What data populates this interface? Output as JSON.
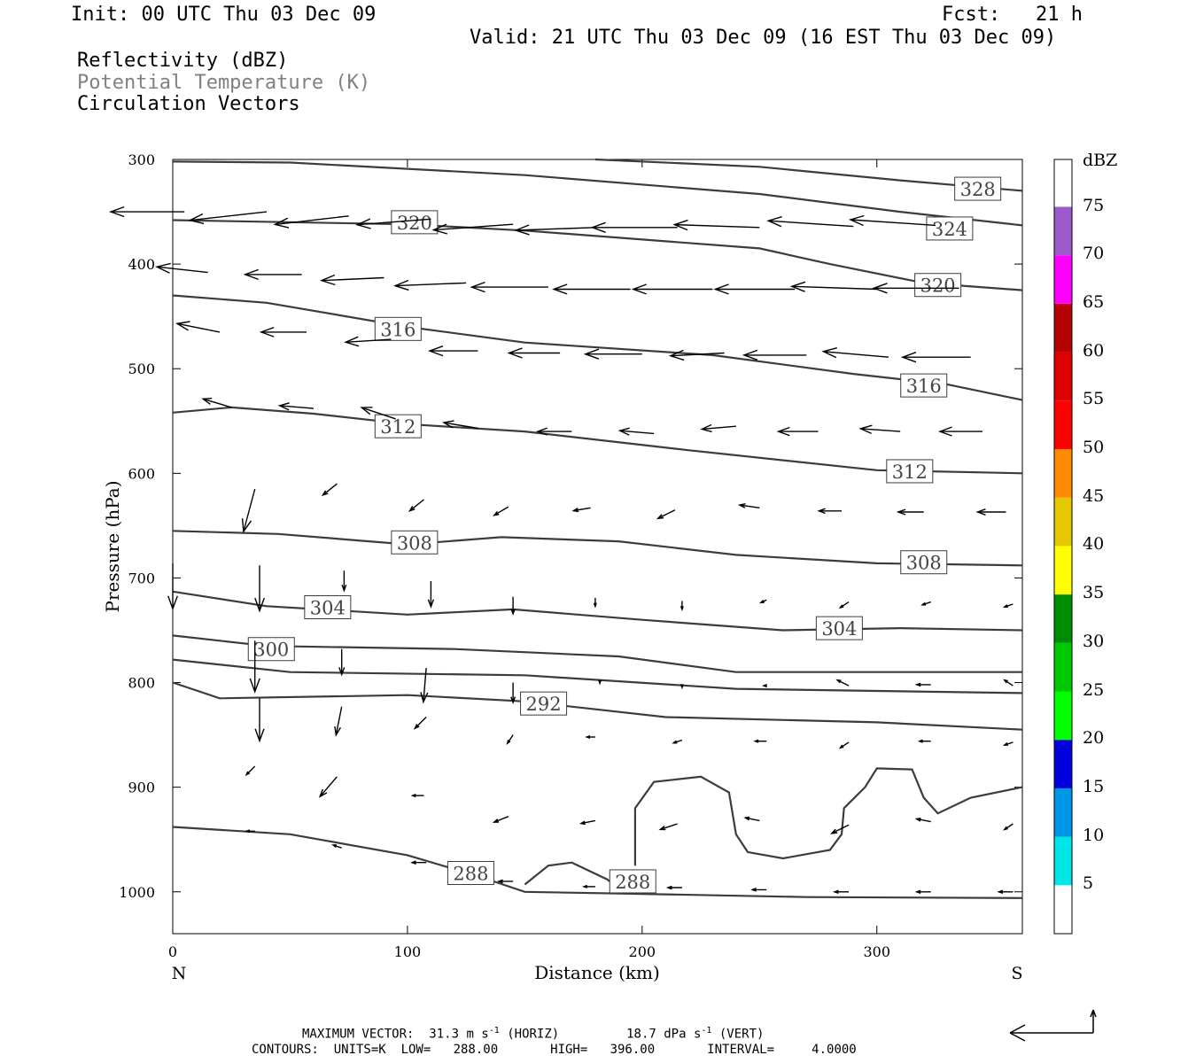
{
  "header": {
    "init": "Init: 00 UTC Thu 03 Dec 09",
    "fcst": "Fcst:   21 h",
    "valid": "Valid: 21 UTC Thu 03 Dec 09 (16 EST Thu 03 Dec 09)",
    "fields": [
      {
        "label": "Reflectivity (dBZ)",
        "color": "#000000"
      },
      {
        "label": "Potential Temperature (K)",
        "color": "#808080"
      },
      {
        "label": "Circulation Vectors",
        "color": "#000000"
      }
    ]
  },
  "chart_data": {
    "type": "cross-section",
    "xlabel": "Distance (km)",
    "ylabel": "Pressure (hPa)",
    "xlim": [
      0,
      362
    ],
    "ylim": [
      1040,
      300
    ],
    "x_ticks": [
      0,
      100,
      200,
      300
    ],
    "y_ticks": [
      300,
      400,
      500,
      600,
      700,
      800,
      900,
      1000
    ],
    "endpoints": {
      "left": "N",
      "right": "S"
    },
    "grid": false,
    "contour_color": "#3c3c3c",
    "theta_contours": [
      {
        "level": 328,
        "points": [
          [
            180,
            300
          ],
          [
            250,
            307
          ],
          [
            310,
            320
          ],
          [
            362,
            330
          ]
        ],
        "labels": [
          {
            "text": "328",
            "x": 343,
            "p": 328
          }
        ]
      },
      {
        "level": 324,
        "points": [
          [
            0,
            302
          ],
          [
            50,
            303
          ],
          [
            150,
            315
          ],
          [
            250,
            333
          ],
          [
            310,
            350
          ],
          [
            362,
            363
          ]
        ],
        "labels": [
          {
            "text": "324",
            "x": 331,
            "p": 366
          }
        ]
      },
      {
        "level": 320,
        "points": [
          [
            0,
            358
          ],
          [
            100,
            362
          ],
          [
            150,
            368
          ],
          [
            250,
            385
          ],
          [
            280,
            400
          ],
          [
            320,
            418
          ],
          [
            362,
            425
          ]
        ],
        "labels": [
          {
            "text": "320",
            "x": 103,
            "p": 360
          },
          {
            "text": "320",
            "x": 326,
            "p": 420
          }
        ]
      },
      {
        "level": 316,
        "points": [
          [
            0,
            430
          ],
          [
            40,
            437
          ],
          [
            100,
            460
          ],
          [
            150,
            475
          ],
          [
            230,
            487
          ],
          [
            290,
            505
          ],
          [
            330,
            515
          ],
          [
            362,
            530
          ]
        ],
        "labels": [
          {
            "text": "316",
            "x": 96,
            "p": 462
          },
          {
            "text": "316",
            "x": 320,
            "p": 516
          }
        ]
      },
      {
        "level": 312,
        "points": [
          [
            0,
            542
          ],
          [
            25,
            537
          ],
          [
            60,
            543
          ],
          [
            100,
            553
          ],
          [
            150,
            560
          ],
          [
            220,
            578
          ],
          [
            300,
            597
          ],
          [
            362,
            600
          ]
        ],
        "labels": [
          {
            "text": "312",
            "x": 96,
            "p": 555
          },
          {
            "text": "312",
            "x": 314,
            "p": 598
          }
        ]
      },
      {
        "level": 308,
        "points": [
          [
            0,
            655
          ],
          [
            45,
            658
          ],
          [
            100,
            668
          ],
          [
            140,
            661
          ],
          [
            190,
            665
          ],
          [
            240,
            678
          ],
          [
            300,
            686
          ],
          [
            362,
            688
          ]
        ],
        "labels": [
          {
            "text": "308",
            "x": 103,
            "p": 666
          },
          {
            "text": "308",
            "x": 320,
            "p": 685
          }
        ]
      },
      {
        "level": 304,
        "points": [
          [
            0,
            713
          ],
          [
            40,
            727
          ],
          [
            100,
            735
          ],
          [
            145,
            730
          ],
          [
            200,
            740
          ],
          [
            260,
            750
          ],
          [
            310,
            748
          ],
          [
            362,
            750
          ]
        ],
        "labels": [
          {
            "text": "304",
            "x": 66,
            "p": 728
          },
          {
            "text": "304",
            "x": 284,
            "p": 748
          }
        ]
      },
      {
        "level": 300,
        "points": [
          [
            0,
            755
          ],
          [
            40,
            765
          ],
          [
            120,
            768
          ],
          [
            190,
            775
          ],
          [
            240,
            790
          ],
          [
            362,
            790
          ]
        ],
        "labels": [
          {
            "text": "300",
            "x": 42,
            "p": 768
          }
        ]
      },
      {
        "level": 296,
        "points": [
          [
            0,
            778
          ],
          [
            50,
            790
          ],
          [
            150,
            793
          ],
          [
            240,
            806
          ],
          [
            362,
            810
          ]
        ],
        "labels": []
      },
      {
        "level": 292,
        "points": [
          [
            0,
            800
          ],
          [
            20,
            815
          ],
          [
            100,
            812
          ],
          [
            150,
            818
          ],
          [
            210,
            833
          ],
          [
            300,
            838
          ],
          [
            362,
            845
          ]
        ],
        "labels": [
          {
            "text": "292",
            "x": 158,
            "p": 820
          }
        ]
      },
      {
        "level": 288,
        "points": [
          [
            0,
            938
          ],
          [
            50,
            945
          ],
          [
            100,
            965
          ],
          [
            130,
            985
          ],
          [
            150,
            1000
          ],
          [
            200,
            1002
          ],
          [
            270,
            1005
          ],
          [
            362,
            1006
          ]
        ],
        "labels": [
          {
            "text": "288",
            "x": 127,
            "p": 982
          }
        ]
      },
      {
        "level": 288,
        "points": [
          [
            150,
            993
          ],
          [
            160,
            975
          ],
          [
            170,
            972
          ],
          [
            185,
            988
          ],
          [
            188,
            993
          ]
        ],
        "labels": [
          {
            "text": "288",
            "x": 196,
            "p": 990
          }
        ]
      },
      {
        "level": 288,
        "points": [
          [
            197,
            975
          ],
          [
            197,
            920
          ],
          [
            205,
            895
          ],
          [
            225,
            890
          ],
          [
            237,
            905
          ],
          [
            240,
            945
          ],
          [
            245,
            962
          ],
          [
            260,
            968
          ],
          [
            280,
            960
          ],
          [
            285,
            945
          ],
          [
            286,
            920
          ],
          [
            295,
            900
          ],
          [
            300,
            882
          ],
          [
            315,
            883
          ],
          [
            320,
            910
          ],
          [
            326,
            925
          ],
          [
            340,
            910
          ],
          [
            362,
            900
          ]
        ],
        "labels": []
      }
    ],
    "vectors": [
      {
        "x": 5,
        "p": 350,
        "u": -26,
        "v": 0
      },
      {
        "x": 40,
        "p": 350,
        "u": -27,
        "v": -3
      },
      {
        "x": 75,
        "p": 354,
        "u": -26,
        "v": -3
      },
      {
        "x": 110,
        "p": 357,
        "u": -26,
        "v": -2
      },
      {
        "x": 145,
        "p": 362,
        "u": -28,
        "v": -2
      },
      {
        "x": 180,
        "p": 365,
        "u": -28,
        "v": -1
      },
      {
        "x": 215,
        "p": 365,
        "u": -30,
        "v": 0
      },
      {
        "x": 250,
        "p": 365,
        "u": -30,
        "v": 1
      },
      {
        "x": 290,
        "p": 364,
        "u": -30,
        "v": 2
      },
      {
        "x": 325,
        "p": 363,
        "u": -30,
        "v": 2
      },
      {
        "x": 15,
        "p": 408,
        "u": -18,
        "v": 2
      },
      {
        "x": 55,
        "p": 410,
        "u": -20,
        "v": 0
      },
      {
        "x": 90,
        "p": 413,
        "u": -22,
        "v": -1
      },
      {
        "x": 125,
        "p": 418,
        "u": -25,
        "v": -1
      },
      {
        "x": 160,
        "p": 422,
        "u": -27,
        "v": 0
      },
      {
        "x": 195,
        "p": 424,
        "u": -27,
        "v": 0
      },
      {
        "x": 230,
        "p": 424,
        "u": -28,
        "v": 0
      },
      {
        "x": 265,
        "p": 424,
        "u": -28,
        "v": 0
      },
      {
        "x": 300,
        "p": 424,
        "u": -30,
        "v": 1
      },
      {
        "x": 335,
        "p": 423,
        "u": -30,
        "v": 0
      },
      {
        "x": 20,
        "p": 465,
        "u": -15,
        "v": 3
      },
      {
        "x": 57,
        "p": 465,
        "u": -16,
        "v": 0
      },
      {
        "x": 93,
        "p": 472,
        "u": -16,
        "v": -1
      },
      {
        "x": 130,
        "p": 483,
        "u": -17,
        "v": 0
      },
      {
        "x": 165,
        "p": 485,
        "u": -18,
        "v": 0
      },
      {
        "x": 200,
        "p": 486,
        "u": -20,
        "v": 0
      },
      {
        "x": 235,
        "p": 485,
        "u": -19,
        "v": -1
      },
      {
        "x": 270,
        "p": 487,
        "u": -22,
        "v": 0
      },
      {
        "x": 305,
        "p": 489,
        "u": -23,
        "v": 2
      },
      {
        "x": 340,
        "p": 489,
        "u": -24,
        "v": 0
      },
      {
        "x": 25,
        "p": 537,
        "u": -10,
        "v": 3
      },
      {
        "x": 60,
        "p": 538,
        "u": -12,
        "v": 1
      },
      {
        "x": 95,
        "p": 548,
        "u": -12,
        "v": 4
      },
      {
        "x": 130,
        "p": 557,
        "u": -12,
        "v": 2
      },
      {
        "x": 170,
        "p": 560,
        "u": -12,
        "v": 0
      },
      {
        "x": 205,
        "p": 562,
        "u": -12,
        "v": 1
      },
      {
        "x": 240,
        "p": 555,
        "u": -12,
        "v": -1
      },
      {
        "x": 275,
        "p": 560,
        "u": -14,
        "v": 0
      },
      {
        "x": 310,
        "p": 560,
        "u": -14,
        "v": 1
      },
      {
        "x": 345,
        "p": 560,
        "u": -15,
        "v": 0
      },
      {
        "x": 35,
        "p": 615,
        "u": -4,
        "v": -15
      },
      {
        "x": 70,
        "p": 610,
        "u": -5,
        "v": -4
      },
      {
        "x": 107,
        "p": 625,
        "u": -5,
        "v": -4
      },
      {
        "x": 143,
        "p": 632,
        "u": -5,
        "v": -3
      },
      {
        "x": 178,
        "p": 633,
        "u": -6,
        "v": -1
      },
      {
        "x": 214,
        "p": 635,
        "u": -6,
        "v": -3
      },
      {
        "x": 250,
        "p": 633,
        "u": -7,
        "v": 1
      },
      {
        "x": 285,
        "p": 636,
        "u": -8,
        "v": 0
      },
      {
        "x": 320,
        "p": 637,
        "u": -9,
        "v": 0
      },
      {
        "x": 355,
        "p": 637,
        "u": -10,
        "v": 0
      },
      {
        "x": 0,
        "p": 686,
        "u": 0,
        "v": -16
      },
      {
        "x": 37,
        "p": 688,
        "u": 0,
        "v": -16
      },
      {
        "x": 73,
        "p": 693,
        "u": 0,
        "v": -7
      },
      {
        "x": 110,
        "p": 703,
        "u": 0,
        "v": -9
      },
      {
        "x": 145,
        "p": 718,
        "u": 0,
        "v": -6
      },
      {
        "x": 180,
        "p": 719,
        "u": 0,
        "v": -3
      },
      {
        "x": 217,
        "p": 722,
        "u": 0,
        "v": -3
      },
      {
        "x": 253,
        "p": 721,
        "u": -2,
        "v": -1
      },
      {
        "x": 288,
        "p": 723,
        "u": -3,
        "v": -2
      },
      {
        "x": 323,
        "p": 723,
        "u": -3,
        "v": -1
      },
      {
        "x": 358,
        "p": 725,
        "u": -3,
        "v": -1
      },
      {
        "x": 35,
        "p": 760,
        "u": 0,
        "v": -18
      },
      {
        "x": 72,
        "p": 768,
        "u": 0,
        "v": -9
      },
      {
        "x": 108,
        "p": 786,
        "u": -1,
        "v": -12
      },
      {
        "x": 145,
        "p": 800,
        "u": 0,
        "v": -7
      },
      {
        "x": 182,
        "p": 798,
        "u": 0,
        "v": -1
      },
      {
        "x": 217,
        "p": 802,
        "u": 0,
        "v": -1
      },
      {
        "x": 253,
        "p": 803,
        "u": -1,
        "v": 0
      },
      {
        "x": 288,
        "p": 803,
        "u": -4,
        "v": 2
      },
      {
        "x": 323,
        "p": 802,
        "u": -5,
        "v": 0
      },
      {
        "x": 358,
        "p": 803,
        "u": -3,
        "v": 2
      },
      {
        "x": 37,
        "p": 815,
        "u": 0,
        "v": -15
      },
      {
        "x": 72,
        "p": 823,
        "u": -2,
        "v": -10
      },
      {
        "x": 108,
        "p": 833,
        "u": -4,
        "v": -4
      },
      {
        "x": 145,
        "p": 850,
        "u": -2,
        "v": -3
      },
      {
        "x": 180,
        "p": 852,
        "u": -3,
        "v": 0
      },
      {
        "x": 217,
        "p": 855,
        "u": -3,
        "v": -1
      },
      {
        "x": 253,
        "p": 856,
        "u": -4,
        "v": 0
      },
      {
        "x": 288,
        "p": 857,
        "u": -3,
        "v": -2
      },
      {
        "x": 323,
        "p": 856,
        "u": -4,
        "v": 0
      },
      {
        "x": 358,
        "p": 857,
        "u": -3,
        "v": -1
      },
      {
        "x": 35,
        "p": 880,
        "u": -3,
        "v": -3
      },
      {
        "x": 70,
        "p": 890,
        "u": -6,
        "v": -7
      },
      {
        "x": 107,
        "p": 908,
        "u": -4,
        "v": 0
      },
      {
        "x": 143,
        "p": 928,
        "u": -5,
        "v": -2
      },
      {
        "x": 180,
        "p": 932,
        "u": -5,
        "v": -1
      },
      {
        "x": 215,
        "p": 935,
        "u": -6,
        "v": -2
      },
      {
        "x": 250,
        "p": 932,
        "u": -5,
        "v": 1
      },
      {
        "x": 288,
        "p": 936,
        "u": -6,
        "v": -3
      },
      {
        "x": 323,
        "p": 933,
        "u": -5,
        "v": 1
      },
      {
        "x": 358,
        "p": 935,
        "u": -3,
        "v": -2
      },
      {
        "x": 35,
        "p": 942,
        "u": -3,
        "v": 0
      },
      {
        "x": 72,
        "p": 958,
        "u": -3,
        "v": 1
      },
      {
        "x": 108,
        "p": 972,
        "u": -5,
        "v": 0
      },
      {
        "x": 145,
        "p": 990,
        "u": -5,
        "v": 0
      },
      {
        "x": 180,
        "p": 995,
        "u": -4,
        "v": 0
      },
      {
        "x": 217,
        "p": 996,
        "u": -5,
        "v": 0
      },
      {
        "x": 253,
        "p": 998,
        "u": -5,
        "v": 0
      },
      {
        "x": 288,
        "p": 1000,
        "u": -5,
        "v": 0
      },
      {
        "x": 323,
        "p": 1000,
        "u": -5,
        "v": 0
      },
      {
        "x": 358,
        "p": 1000,
        "u": -5,
        "v": 0
      }
    ],
    "colorbar": {
      "title": "dBZ",
      "ticks": [
        "5",
        "10",
        "15",
        "20",
        "25",
        "30",
        "35",
        "40",
        "45",
        "50",
        "55",
        "60",
        "65",
        "70",
        "75"
      ],
      "colors": [
        "#00e6e6",
        "#0096e6",
        "#0000dc",
        "#00ff00",
        "#00c800",
        "#008c00",
        "#ffff00",
        "#e6c800",
        "#ff8c00",
        "#ff0000",
        "#dc0000",
        "#b40000",
        "#ff00ff",
        "#9b59c9"
      ]
    },
    "max_vector": {
      "label": "MAXIMUM VECTOR:",
      "horiz": "31.3 m s",
      "horiz_exp": "-1",
      "horiz_tag": "(HORIZ)",
      "vert": "18.7 dPa s",
      "vert_exp": "-1",
      "vert_tag": "(VERT)"
    },
    "contours_info": "CONTOURS:  UNITS=K  LOW=   288.00       HIGH=   396.00       INTERVAL=     4.0000"
  }
}
